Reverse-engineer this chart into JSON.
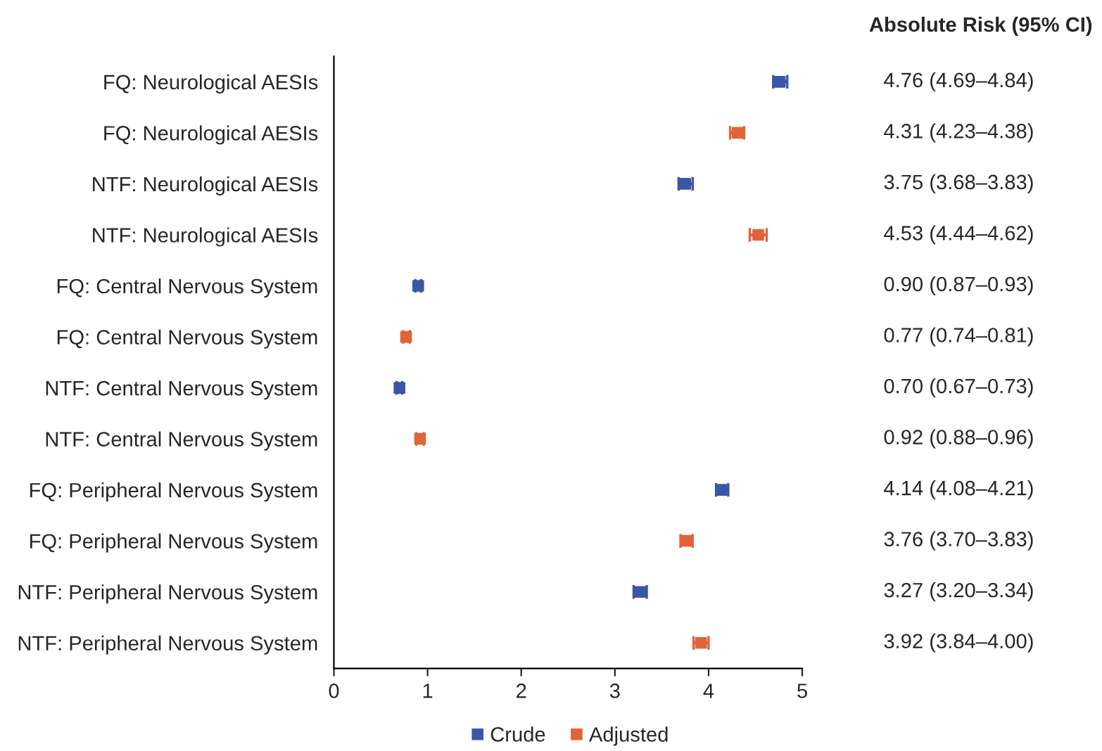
{
  "chart_data": [
    {
      "type": "scatter",
      "orientation": "horizontal",
      "categories": [
        "FQ: Neurological AESIs",
        "FQ: Neurological AESIs",
        "NTF: Neurological AESIs",
        "NTF: Neurological AESIs",
        "FQ: Central Nervous System",
        "FQ: Central Nervous System",
        "NTF: Central Nervous System",
        "NTF: Central Nervous System",
        "FQ: Peripheral Nervous System",
        "FQ: Peripheral Nervous System",
        "NTF: Peripheral Nervous System",
        "NTF: Peripheral Nervous System"
      ],
      "series": [
        {
          "name": "Crude",
          "color": "#3b55a8",
          "values": [
            4.76,
            null,
            3.75,
            null,
            0.9,
            null,
            0.7,
            null,
            4.14,
            null,
            3.27,
            null
          ],
          "errors": [
            [
              4.69,
              4.84
            ],
            null,
            [
              3.68,
              3.83
            ],
            null,
            [
              0.87,
              0.93
            ],
            null,
            [
              0.67,
              0.73
            ],
            null,
            [
              4.08,
              4.21
            ],
            null,
            [
              3.2,
              3.34
            ],
            null
          ]
        },
        {
          "name": "Adjusted",
          "color": "#e0643a",
          "values": [
            null,
            4.31,
            null,
            4.53,
            null,
            0.77,
            null,
            0.92,
            null,
            3.76,
            null,
            3.92
          ],
          "errors": [
            null,
            [
              4.23,
              4.38
            ],
            null,
            [
              4.44,
              4.62
            ],
            null,
            [
              0.74,
              0.81
            ],
            null,
            [
              0.88,
              0.96
            ],
            null,
            [
              3.7,
              3.83
            ],
            null,
            [
              3.84,
              4.0
            ]
          ]
        }
      ],
      "xlim": [
        0,
        5
      ],
      "xticks": [
        0,
        1,
        2,
        3,
        4,
        5
      ],
      "marker": "square",
      "grid": false,
      "legend": "bottom"
    },
    {
      "type": "other",
      "title": "Absolute Risk (95% CI)",
      "annotations": [
        "4.76 (4.69–4.84)",
        "4.31 (4.23–4.38)",
        "3.75 (3.68–3.83)",
        "4.53 (4.44–4.62)",
        "0.90 (0.87–0.93)",
        "0.77 (0.74–0.81)",
        "0.70 (0.67–0.73)",
        "0.92 (0.88–0.96)",
        "4.14 (4.08–4.21)",
        "3.76 (3.70–3.83)",
        "3.27 (3.20–3.34)",
        "3.92 (3.84–4.00)"
      ]
    }
  ]
}
